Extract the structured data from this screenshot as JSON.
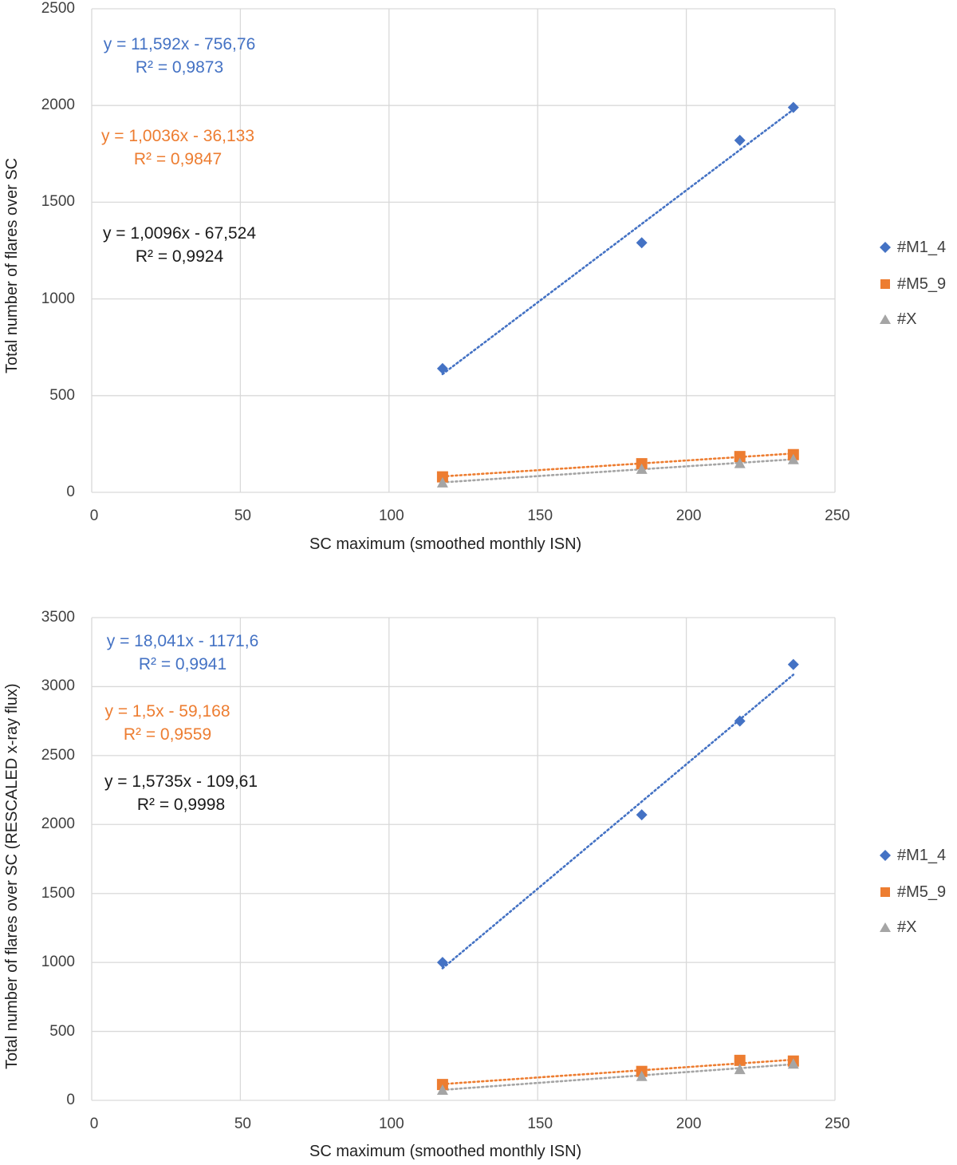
{
  "colors": {
    "M1_4": "#4472c4",
    "M5_9": "#ed7d31",
    "X": "#a5a5a5",
    "grid": "#d9d9d9",
    "eq_X": "#1a1a1a"
  },
  "chart_data": [
    {
      "type": "scatter",
      "xlabel": "SC maximum (smoothed monthly ISN)",
      "ylabel": "Total number of flares over SC",
      "xlim": [
        0,
        250
      ],
      "ylim": [
        0,
        2500
      ],
      "x_ticks": [
        "0",
        "50",
        "100",
        "150",
        "200",
        "250"
      ],
      "y_ticks": [
        "0",
        "500",
        "1000",
        "1500",
        "2000",
        "2500"
      ],
      "grid": true,
      "legend_position": "right",
      "series": [
        {
          "name": "#M1_4",
          "marker": "diamond",
          "x": [
            118,
            185,
            218,
            236
          ],
          "y": [
            640,
            1290,
            1820,
            1990
          ],
          "trendline": {
            "slope": 11.592,
            "intercept": -756.76
          },
          "equation": "y = 11,592x - 756,76",
          "r2": "R² = 0,9873"
        },
        {
          "name": "#M5_9",
          "marker": "square",
          "x": [
            118,
            185,
            218,
            236
          ],
          "y": [
            80,
            148,
            185,
            195
          ],
          "trendline": {
            "slope": 1.0036,
            "intercept": -36.133
          },
          "equation": "y = 1,0036x - 36,133",
          "r2": "R² = 0,9847"
        },
        {
          "name": "#X",
          "marker": "triangle",
          "x": [
            118,
            185,
            218,
            236
          ],
          "y": [
            50,
            120,
            150,
            170
          ],
          "trendline": {
            "slope": 1.0096,
            "intercept": -67.524
          },
          "equation": "y = 1,0096x - 67,524",
          "r2": "R² = 0,9924"
        }
      ]
    },
    {
      "type": "scatter",
      "xlabel": "SC maximum (smoothed monthly ISN)",
      "ylabel": "Total number of flares over SC (RESCALED x-ray flux)",
      "xlim": [
        0,
        250
      ],
      "ylim": [
        0,
        3500
      ],
      "x_ticks": [
        "0",
        "50",
        "100",
        "150",
        "200",
        "250"
      ],
      "y_ticks": [
        "0",
        "500",
        "1000",
        "1500",
        "2000",
        "2500",
        "3000",
        "3500"
      ],
      "grid": true,
      "legend_position": "right",
      "series": [
        {
          "name": "#M1_4",
          "marker": "diamond",
          "x": [
            118,
            185,
            218,
            236
          ],
          "y": [
            1000,
            2070,
            2750,
            3160
          ],
          "trendline": {
            "slope": 18.041,
            "intercept": -1171.6
          },
          "equation": "y = 18,041x - 1171,6",
          "r2": "R² = 0,9941"
        },
        {
          "name": "#M5_9",
          "marker": "square",
          "x": [
            118,
            185,
            218,
            236
          ],
          "y": [
            115,
            210,
            290,
            285
          ],
          "trendline": {
            "slope": 1.5,
            "intercept": -59.168
          },
          "equation": "y = 1,5x - 59,168",
          "r2": "R² = 0,9559"
        },
        {
          "name": "#X",
          "marker": "triangle",
          "x": [
            118,
            185,
            218,
            236
          ],
          "y": [
            75,
            175,
            225,
            265
          ],
          "trendline": {
            "slope": 1.5735,
            "intercept": -109.61
          },
          "equation": "y = 1,5735x - 109,61",
          "r2": "R² = 0,9998"
        }
      ]
    }
  ]
}
